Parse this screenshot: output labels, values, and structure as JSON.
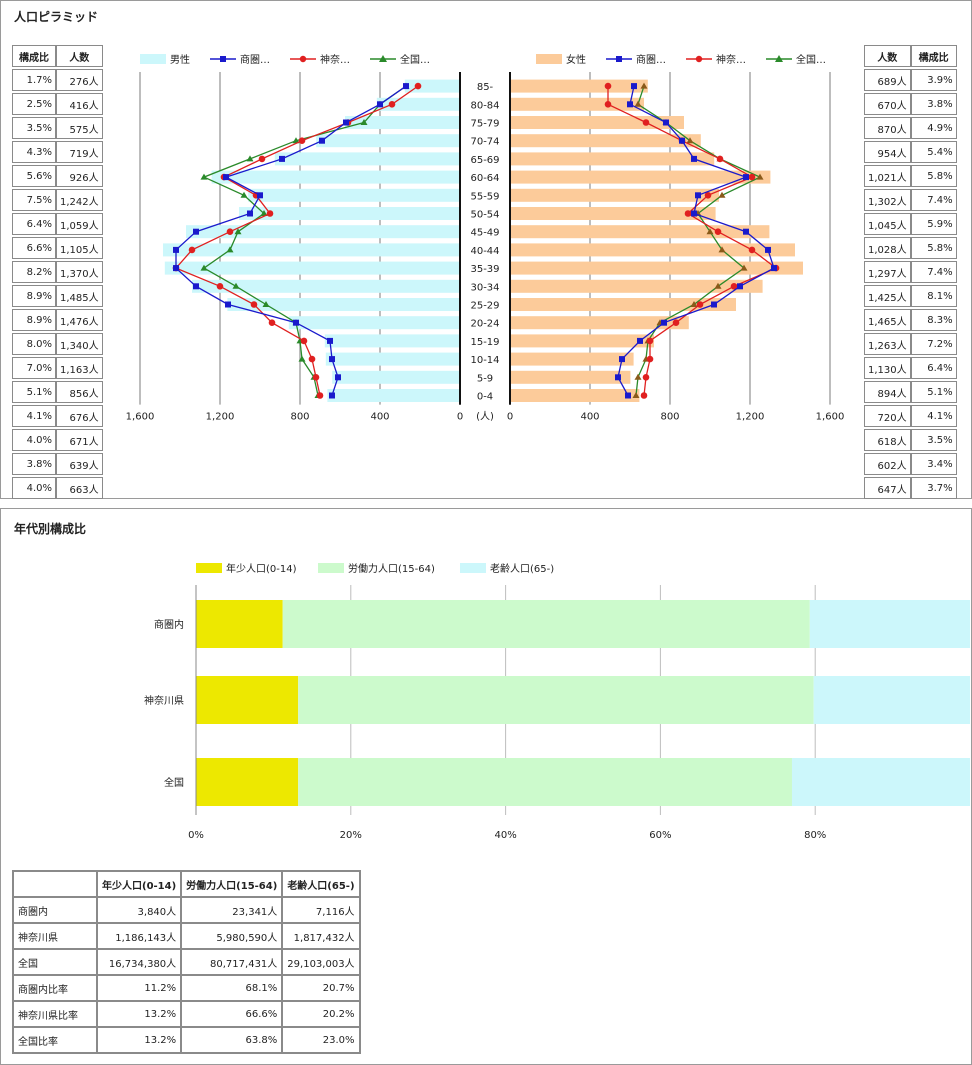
{
  "pyramid": {
    "title": "人口ピラミッド",
    "left_table": {
      "headers": [
        "構成比",
        "人数"
      ],
      "rows": [
        [
          "1.7%",
          "276人"
        ],
        [
          "2.5%",
          "416人"
        ],
        [
          "3.5%",
          "575人"
        ],
        [
          "4.3%",
          "719人"
        ],
        [
          "5.6%",
          "926人"
        ],
        [
          "7.5%",
          "1,242人"
        ],
        [
          "6.4%",
          "1,059人"
        ],
        [
          "6.6%",
          "1,105人"
        ],
        [
          "8.2%",
          "1,370人"
        ],
        [
          "8.9%",
          "1,485人"
        ],
        [
          "8.9%",
          "1,476人"
        ],
        [
          "8.0%",
          "1,340人"
        ],
        [
          "7.0%",
          "1,163人"
        ],
        [
          "5.1%",
          "856人"
        ],
        [
          "4.1%",
          "676人"
        ],
        [
          "4.0%",
          "671人"
        ],
        [
          "3.8%",
          "639人"
        ],
        [
          "4.0%",
          "663人"
        ]
      ]
    },
    "right_table": {
      "headers": [
        "人数",
        "構成比"
      ],
      "rows": [
        [
          "689人",
          "3.9%"
        ],
        [
          "670人",
          "3.8%"
        ],
        [
          "870人",
          "4.9%"
        ],
        [
          "954人",
          "5.4%"
        ],
        [
          "1,021人",
          "5.8%"
        ],
        [
          "1,302人",
          "7.4%"
        ],
        [
          "1,045人",
          "5.9%"
        ],
        [
          "1,028人",
          "5.8%"
        ],
        [
          "1,297人",
          "7.4%"
        ],
        [
          "1,425人",
          "8.1%"
        ],
        [
          "1,465人",
          "8.3%"
        ],
        [
          "1,263人",
          "7.2%"
        ],
        [
          "1,130人",
          "6.4%"
        ],
        [
          "894人",
          "5.1%"
        ],
        [
          "720人",
          "4.1%"
        ],
        [
          "618人",
          "3.5%"
        ],
        [
          "602人",
          "3.4%"
        ],
        [
          "647人",
          "3.7%"
        ]
      ]
    },
    "male_legend": [
      "男性",
      "商圏…",
      "神奈…",
      "全国…"
    ],
    "female_legend": [
      "女性",
      "商圏…",
      "神奈…",
      "全国…"
    ],
    "unit_label": "(人)",
    "colors": {
      "male_bar": "#ccf7fb",
      "female_bar": "#fccb9a",
      "area_line": "#1a1acc",
      "kanagawa_line": "#e02020",
      "national_line": "#2a8a2a",
      "female_national_marker": "#8a5a1a"
    }
  },
  "chart_data": [
    {
      "type": "bar",
      "orientation": "horizontal",
      "title": "人口ピラミッド",
      "categories": [
        "85-",
        "80-84",
        "75-79",
        "70-74",
        "65-69",
        "60-64",
        "55-59",
        "50-54",
        "45-49",
        "40-44",
        "35-39",
        "30-34",
        "25-29",
        "20-24",
        "15-19",
        "10-14",
        "5-9",
        "0-4"
      ],
      "male_axis": {
        "ticks": [
          "1,600",
          "1,200",
          "800",
          "400",
          "0"
        ],
        "xlim": [
          1600,
          0
        ]
      },
      "female_axis": {
        "ticks": [
          "0",
          "400",
          "800",
          "1,200",
          "1,600"
        ],
        "xlim": [
          0,
          1600
        ]
      },
      "series": [
        {
          "name": "男性",
          "side": "male",
          "kind": "bar",
          "values": [
            276,
            416,
            575,
            719,
            926,
            1242,
            1059,
            1105,
            1370,
            1485,
            1476,
            1340,
            1163,
            856,
            676,
            671,
            639,
            663
          ]
        },
        {
          "name": "商圏…",
          "side": "male",
          "kind": "line",
          "values": [
            270,
            400,
            570,
            690,
            890,
            1170,
            1000,
            1050,
            1320,
            1420,
            1420,
            1320,
            1160,
            820,
            650,
            640,
            610,
            640
          ]
        },
        {
          "name": "神奈…",
          "side": "male",
          "kind": "line",
          "values": [
            210,
            340,
            560,
            790,
            990,
            1180,
            1020,
            950,
            1150,
            1340,
            1420,
            1200,
            1030,
            940,
            780,
            740,
            720,
            700
          ]
        },
        {
          "name": "全国…",
          "side": "male",
          "kind": "line",
          "values": [
            270,
            400,
            480,
            820,
            1050,
            1280,
            1080,
            980,
            1110,
            1150,
            1280,
            1120,
            970,
            820,
            800,
            790,
            730,
            710
          ]
        },
        {
          "name": "女性",
          "side": "female",
          "kind": "bar",
          "values": [
            689,
            670,
            870,
            954,
            1021,
            1302,
            1045,
            1028,
            1297,
            1425,
            1465,
            1263,
            1130,
            894,
            720,
            618,
            602,
            647
          ]
        },
        {
          "name": "商圏…",
          "side": "female",
          "kind": "line",
          "values": [
            620,
            600,
            780,
            860,
            920,
            1180,
            940,
            920,
            1180,
            1290,
            1320,
            1150,
            1020,
            770,
            650,
            560,
            540,
            590
          ]
        },
        {
          "name": "神奈…",
          "side": "female",
          "kind": "line",
          "values": [
            490,
            490,
            680,
            860,
            1050,
            1210,
            990,
            890,
            1040,
            1210,
            1330,
            1120,
            950,
            830,
            700,
            700,
            680,
            670
          ]
        },
        {
          "name": "全国…",
          "side": "female",
          "kind": "line",
          "values": [
            670,
            640,
            780,
            900,
            1050,
            1250,
            1060,
            940,
            1000,
            1060,
            1170,
            1040,
            920,
            750,
            690,
            680,
            640,
            630
          ]
        }
      ]
    },
    {
      "type": "bar",
      "orientation": "horizontal",
      "stacked": true,
      "title": "年代別構成比",
      "categories": [
        "商圏内",
        "神奈川県",
        "全国"
      ],
      "series": [
        {
          "name": "年少人口(0-14)",
          "values": [
            11.2,
            13.2,
            13.2
          ]
        },
        {
          "name": "労働力人口(15-64)",
          "values": [
            68.1,
            66.6,
            63.8
          ]
        },
        {
          "name": "老齢人口(65-)",
          "values": [
            20.7,
            20.2,
            23.0
          ]
        }
      ],
      "x_ticks": [
        "0%",
        "20%",
        "40%",
        "60%",
        "80%"
      ],
      "xlim": [
        0,
        100
      ],
      "colors": [
        "#ede800",
        "#ccfacc",
        "#ccf7fb"
      ]
    }
  ],
  "composition": {
    "title": "年代別構成比",
    "legend": [
      "年少人口(0-14)",
      "労働力人口(15-64)",
      "老齢人口(65-)"
    ],
    "table": {
      "headers": [
        "",
        "年少人口(0-14)",
        "労働力人口(15-64)",
        "老齢人口(65-)"
      ],
      "rows": [
        [
          "商圏内",
          "3,840人",
          "23,341人",
          "7,116人"
        ],
        [
          "神奈川県",
          "1,186,143人",
          "5,980,590人",
          "1,817,432人"
        ],
        [
          "全国",
          "16,734,380人",
          "80,717,431人",
          "29,103,003人"
        ],
        [
          "商圏内比率",
          "11.2%",
          "68.1%",
          "20.7%"
        ],
        [
          "神奈川県比率",
          "13.2%",
          "66.6%",
          "20.2%"
        ],
        [
          "全国比率",
          "13.2%",
          "63.8%",
          "23.0%"
        ]
      ]
    }
  }
}
